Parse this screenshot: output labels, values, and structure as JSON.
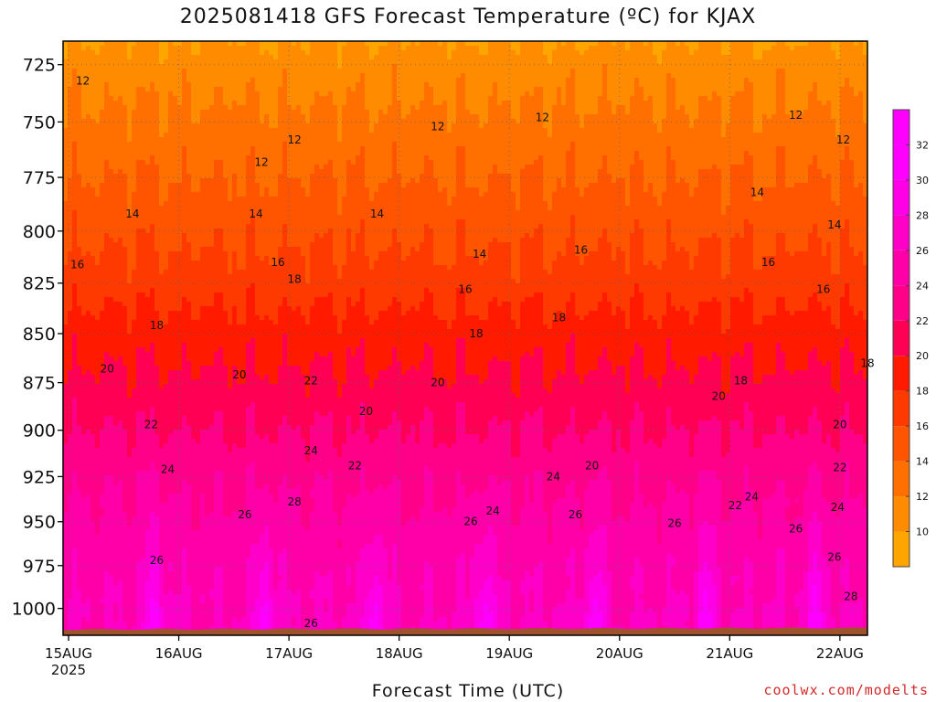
{
  "chart_data": {
    "type": "heatmap",
    "title": "2025081418 GFS Forecast Temperature (ºC) for KJAX",
    "xlabel": "Forecast Time (UTC)",
    "credit": "coolwx.com/modelts",
    "x_ticks": [
      {
        "label": "15AUG",
        "sub": "2025",
        "day": 15
      },
      {
        "label": "16AUG",
        "sub": "",
        "day": 16
      },
      {
        "label": "17AUG",
        "sub": "",
        "day": 17
      },
      {
        "label": "18AUG",
        "sub": "",
        "day": 18
      },
      {
        "label": "19AUG",
        "sub": "",
        "day": 19
      },
      {
        "label": "20AUG",
        "sub": "",
        "day": 20
      },
      {
        "label": "21AUG",
        "sub": "",
        "day": 21
      },
      {
        "label": "22AUG",
        "sub": "",
        "day": 22
      }
    ],
    "xlim": [
      14.95,
      22.25
    ],
    "y_ticks": [
      725,
      750,
      775,
      800,
      825,
      850,
      875,
      900,
      925,
      950,
      975,
      1000
    ],
    "ylim": [
      1016,
      715
    ],
    "y_scale": "log",
    "grid": true,
    "colorbar": {
      "levels": [
        10,
        12,
        14,
        16,
        18,
        20,
        22,
        24,
        26,
        28,
        30,
        32
      ],
      "min": 8,
      "max": 34,
      "colors": [
        "#ffa500",
        "#ff8c00",
        "#ff7000",
        "#ff5500",
        "#ff3a00",
        "#ff1a00",
        "#ff0055",
        "#ff0088",
        "#ff00a8",
        "#ff00c8",
        "#ff00e6",
        "#ff00ff",
        "#ff00ff"
      ]
    },
    "temperature_profile": {
      "pressure": [
        715,
        725,
        750,
        775,
        800,
        825,
        850,
        875,
        900,
        925,
        950,
        975,
        1000,
        1016
      ],
      "night_temp": [
        10.0,
        11.0,
        12.5,
        14.0,
        15.5,
        17.0,
        19.0,
        20.5,
        22.0,
        23.5,
        24.5,
        25.5,
        26.0,
        26.3
      ],
      "day_temp": [
        10.0,
        11.0,
        12.5,
        14.0,
        15.5,
        17.0,
        19.0,
        20.5,
        22.0,
        24.0,
        26.0,
        28.0,
        30.5,
        32.5
      ]
    },
    "contour_labels": [
      {
        "value": "12",
        "x": 15.13,
        "p": 732
      },
      {
        "value": "12",
        "x": 16.75,
        "p": 768
      },
      {
        "value": "12",
        "x": 17.05,
        "p": 758
      },
      {
        "value": "12",
        "x": 18.35,
        "p": 752
      },
      {
        "value": "12",
        "x": 19.3,
        "p": 748
      },
      {
        "value": "12",
        "x": 21.6,
        "p": 747
      },
      {
        "value": "12",
        "x": 22.03,
        "p": 758
      },
      {
        "value": "14",
        "x": 15.58,
        "p": 792
      },
      {
        "value": "14",
        "x": 16.7,
        "p": 792
      },
      {
        "value": "14",
        "x": 17.8,
        "p": 792
      },
      {
        "value": "14",
        "x": 18.73,
        "p": 811
      },
      {
        "value": "14",
        "x": 21.25,
        "p": 782
      },
      {
        "value": "14",
        "x": 21.95,
        "p": 797
      },
      {
        "value": "16",
        "x": 15.08,
        "p": 816
      },
      {
        "value": "16",
        "x": 16.9,
        "p": 815
      },
      {
        "value": "16",
        "x": 18.6,
        "p": 828
      },
      {
        "value": "16",
        "x": 19.65,
        "p": 809
      },
      {
        "value": "16",
        "x": 21.35,
        "p": 815
      },
      {
        "value": "16",
        "x": 21.85,
        "p": 828
      },
      {
        "value": "18",
        "x": 15.8,
        "p": 846
      },
      {
        "value": "18",
        "x": 17.05,
        "p": 823
      },
      {
        "value": "18",
        "x": 18.7,
        "p": 850
      },
      {
        "value": "18",
        "x": 19.45,
        "p": 842
      },
      {
        "value": "18",
        "x": 21.1,
        "p": 874
      },
      {
        "value": "18",
        "x": 22.25,
        "p": 865
      },
      {
        "value": "20",
        "x": 15.35,
        "p": 868
      },
      {
        "value": "20",
        "x": 16.55,
        "p": 871
      },
      {
        "value": "20",
        "x": 17.7,
        "p": 890
      },
      {
        "value": "20",
        "x": 18.35,
        "p": 875
      },
      {
        "value": "20",
        "x": 19.75,
        "p": 919
      },
      {
        "value": "20",
        "x": 20.9,
        "p": 882
      },
      {
        "value": "20",
        "x": 22.0,
        "p": 897
      },
      {
        "value": "22",
        "x": 15.75,
        "p": 897
      },
      {
        "value": "22",
        "x": 17.2,
        "p": 874
      },
      {
        "value": "22",
        "x": 17.6,
        "p": 919
      },
      {
        "value": "22",
        "x": 21.05,
        "p": 941
      },
      {
        "value": "22",
        "x": 22.0,
        "p": 920
      },
      {
        "value": "24",
        "x": 15.9,
        "p": 921
      },
      {
        "value": "24",
        "x": 17.2,
        "p": 911
      },
      {
        "value": "24",
        "x": 18.85,
        "p": 944
      },
      {
        "value": "24",
        "x": 19.4,
        "p": 925
      },
      {
        "value": "24",
        "x": 21.2,
        "p": 936
      },
      {
        "value": "24",
        "x": 21.98,
        "p": 942
      },
      {
        "value": "26",
        "x": 15.8,
        "p": 972
      },
      {
        "value": "26",
        "x": 16.6,
        "p": 946
      },
      {
        "value": "26",
        "x": 18.65,
        "p": 950
      },
      {
        "value": "26",
        "x": 19.6,
        "p": 946
      },
      {
        "value": "26",
        "x": 20.5,
        "p": 951
      },
      {
        "value": "26",
        "x": 21.6,
        "p": 954
      },
      {
        "value": "26",
        "x": 21.95,
        "p": 970
      },
      {
        "value": "26",
        "x": 17.2,
        "p": 1009
      },
      {
        "value": "28",
        "x": 17.05,
        "p": 939
      },
      {
        "value": "28",
        "x": 22.1,
        "p": 993
      }
    ]
  }
}
